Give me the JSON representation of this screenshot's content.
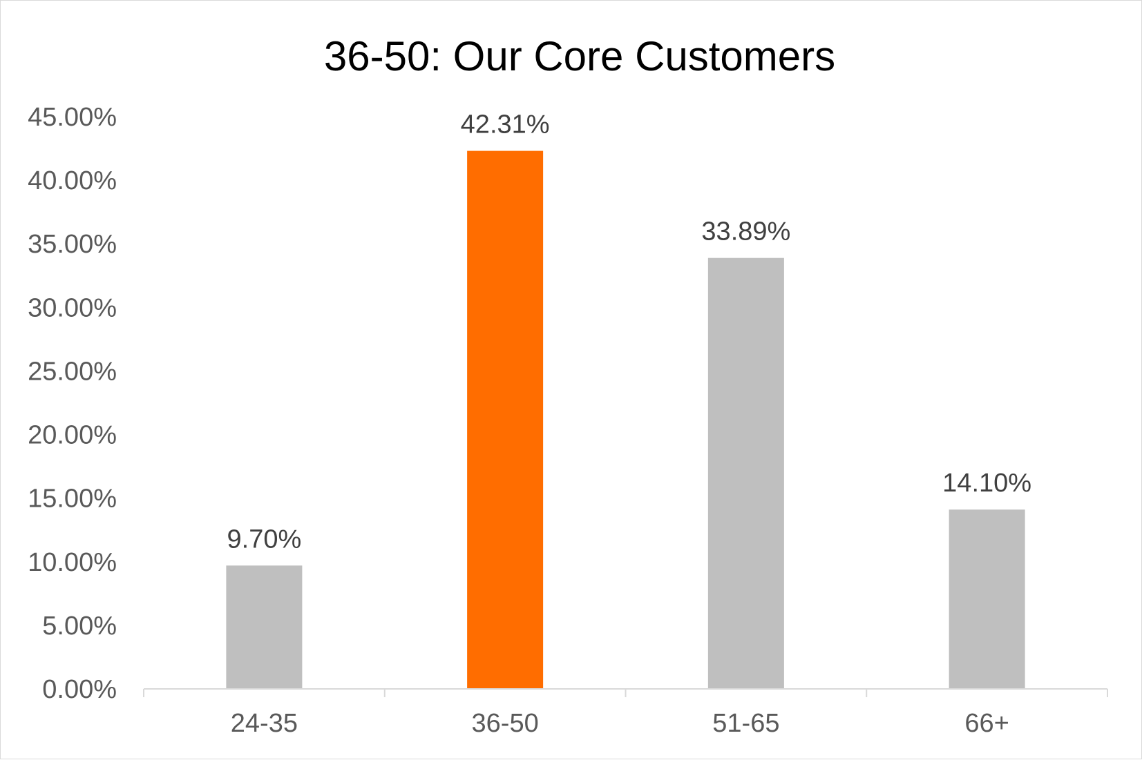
{
  "chart_data": {
    "type": "bar",
    "title": "36-50: Our Core Customers",
    "xlabel": "",
    "ylabel": "",
    "categories": [
      "24-35",
      "36-50",
      "51-65",
      "66+"
    ],
    "values": [
      9.7,
      42.31,
      33.89,
      14.1
    ],
    "value_labels": [
      "9.70%",
      "42.31%",
      "33.89%",
      "14.10%"
    ],
    "ylim": [
      0,
      45
    ],
    "yticks": [
      0,
      5,
      10,
      15,
      20,
      25,
      30,
      35,
      40,
      45
    ],
    "ytick_labels": [
      "0.00%",
      "5.00%",
      "10.00%",
      "15.00%",
      "20.00%",
      "25.00%",
      "30.00%",
      "35.00%",
      "40.00%",
      "45.00%"
    ],
    "bar_colors": [
      "#bfbfbf",
      "#ff6d00",
      "#bfbfbf",
      "#bfbfbf"
    ],
    "grid": false,
    "legend": "none"
  }
}
